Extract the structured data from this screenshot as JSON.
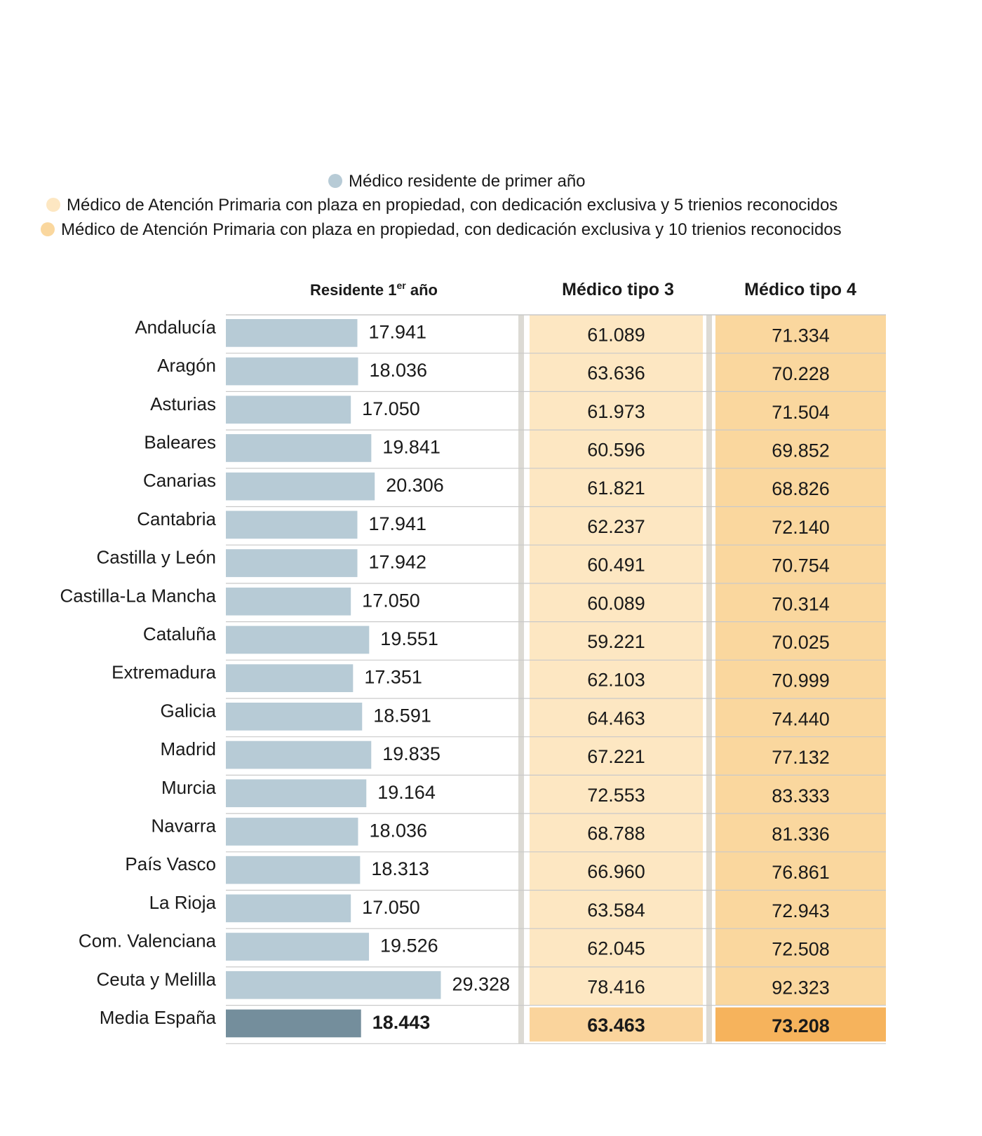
{
  "legend": [
    {
      "label": "Médico residente de primer año",
      "color": "#b7cbd6"
    },
    {
      "label": "Médico de Atención Primaria con plaza en propiedad, con dedicación exclusiva y 5 trienios reconocidos",
      "color": "#fde7c2"
    },
    {
      "label": "Médico de Atención Primaria con plaza en propiedad, con dedicación exclusiva y 10 trienios reconocidos",
      "color": "#fad79e"
    }
  ],
  "columns": {
    "residente_main": "Residente 1",
    "residente_sup": "er",
    "residente_tail": " año",
    "tipo3": "Médico tipo 3",
    "tipo4": "Médico tipo 4"
  },
  "colors": {
    "bar": "#b7cbd6",
    "bar_avg": "#748e9c",
    "tipo3_bg": "#fde7c2",
    "tipo3_avg": "#fad49c",
    "tipo4_bg": "#fad79e",
    "tipo4_avg": "#f6b35c",
    "separator": "#dcdad4",
    "rule": "#c9c9c9"
  },
  "chart_data": {
    "type": "table",
    "columns": [
      "Residente 1er año",
      "Médico tipo 3",
      "Médico tipo 4"
    ],
    "rows": [
      {
        "region": "Andalucía",
        "residente": "17.941",
        "tipo3": "61.089",
        "tipo4": "71.334"
      },
      {
        "region": "Aragón",
        "residente": "18.036",
        "tipo3": "63.636",
        "tipo4": "70.228"
      },
      {
        "region": "Asturias",
        "residente": "17.050",
        "tipo3": "61.973",
        "tipo4": "71.504"
      },
      {
        "region": "Baleares",
        "residente": "19.841",
        "tipo3": "60.596",
        "tipo4": "69.852"
      },
      {
        "region": "Canarias",
        "residente": "20.306",
        "tipo3": "61.821",
        "tipo4": "68.826"
      },
      {
        "region": "Cantabria",
        "residente": "17.941",
        "tipo3": "62.237",
        "tipo4": "72.140"
      },
      {
        "region": "Castilla y León",
        "residente": "17.942",
        "tipo3": "60.491",
        "tipo4": "70.754"
      },
      {
        "region": "Castilla-La Mancha",
        "residente": "17.050",
        "tipo3": "60.089",
        "tipo4": "70.314"
      },
      {
        "region": "Cataluña",
        "residente": "19.551",
        "tipo3": "59.221",
        "tipo4": "70.025"
      },
      {
        "region": "Extremadura",
        "residente": "17.351",
        "tipo3": "62.103",
        "tipo4": "70.999"
      },
      {
        "region": "Galicia",
        "residente": "18.591",
        "tipo3": "64.463",
        "tipo4": "74.440"
      },
      {
        "region": "Madrid",
        "residente": "19.835",
        "tipo3": "67.221",
        "tipo4": "77.132"
      },
      {
        "region": "Murcia",
        "residente": "19.164",
        "tipo3": "72.553",
        "tipo4": "83.333"
      },
      {
        "region": "Navarra",
        "residente": "18.036",
        "tipo3": "68.788",
        "tipo4": "81.336"
      },
      {
        "region": "País Vasco",
        "residente": "18.313",
        "tipo3": "66.960",
        "tipo4": "76.861"
      },
      {
        "region": "La Rioja",
        "residente": "17.050",
        "tipo3": "63.584",
        "tipo4": "72.943"
      },
      {
        "region": "Com. Valenciana",
        "residente": "19.526",
        "tipo3": "62.045",
        "tipo4": "72.508"
      },
      {
        "region": "Ceuta y Melilla",
        "residente": "29.328",
        "tipo3": "78.416",
        "tipo4": "92.323"
      },
      {
        "region": "Media España",
        "residente": "18.443",
        "tipo3": "63.463",
        "tipo4": "73.208",
        "is_average": true
      }
    ]
  }
}
